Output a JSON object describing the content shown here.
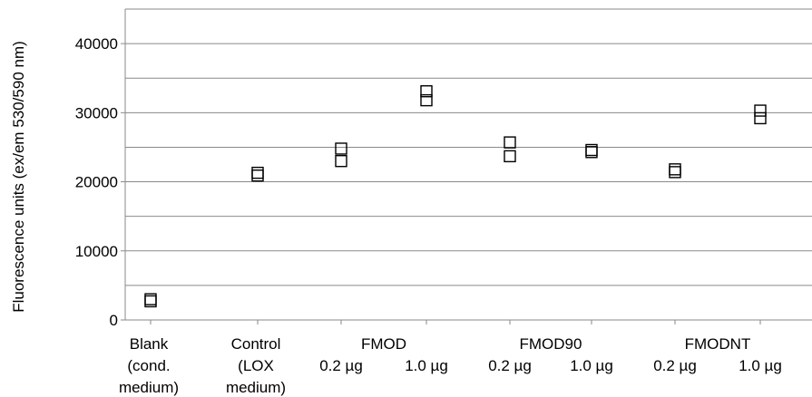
{
  "chart_data": {
    "type": "scatter",
    "title": "",
    "xlabel": "",
    "ylabel": "Fluorescence units (ex/em 530/590 nm)",
    "ylim": [
      0,
      45000
    ],
    "y_ticks": [
      "0",
      "10000",
      "20000",
      "30000",
      "40000"
    ],
    "grid": true,
    "marker": "open-square",
    "categories": [
      {
        "lines": [
          "Blank",
          "(cond.",
          "medium)"
        ],
        "values": [
          2700,
          3000
        ]
      },
      {
        "lines": [
          "Control",
          "(LOX",
          "medium)"
        ],
        "values": [
          20900,
          21300
        ]
      },
      {
        "lines": [
          "0.2 µg"
        ],
        "values": [
          23000,
          24800
        ]
      },
      {
        "lines": [
          "1.0 µg"
        ],
        "values": [
          31800,
          33100
        ]
      },
      {
        "lines": [
          "0.2 µg"
        ],
        "values": [
          23700,
          25700
        ]
      },
      {
        "lines": [
          "1.0 µg"
        ],
        "values": [
          24300,
          24600
        ]
      },
      {
        "lines": [
          "0.2 µg"
        ],
        "values": [
          21400,
          21800
        ]
      },
      {
        "lines": [
          "1.0 µg"
        ],
        "values": [
          29200,
          30300
        ]
      }
    ],
    "groups": [
      {
        "label": "FMOD",
        "span": [
          2,
          3
        ]
      },
      {
        "label": "FMOD90",
        "span": [
          4,
          5
        ]
      },
      {
        "label": "FMODNT",
        "span": [
          6,
          7
        ]
      }
    ]
  }
}
